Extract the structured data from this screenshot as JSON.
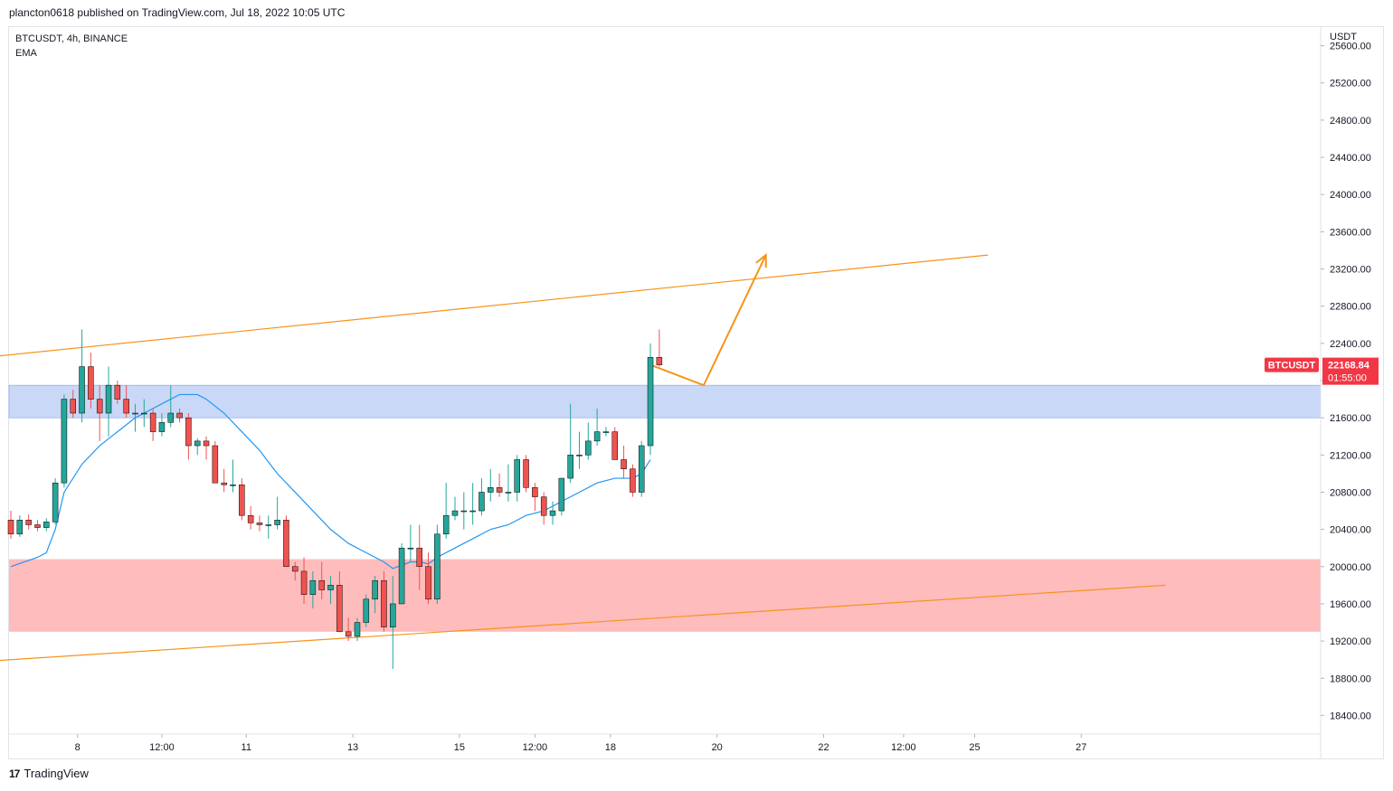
{
  "header": {
    "published": "plancton0618 published on TradingView.com, Jul 18, 2022 10:05 UTC"
  },
  "symbol": {
    "line1": "BTCUSDT, 4h, BINANCE",
    "line2": "EMA"
  },
  "price_axis": {
    "currency": "USDT"
  },
  "last_price": {
    "symbol_tag": "BTCUSDT",
    "price": "22168.84",
    "countdown": "01:55:00",
    "tag_color": "#f23645"
  },
  "footer": {
    "logo": "17",
    "brand": "TradingView"
  },
  "colors": {
    "up": "#26a69a",
    "down": "#ef5350",
    "ema": "#2196f3",
    "trend": "#f7931a",
    "resistance_zone": "#c9d8f7",
    "support_zone": "#ffbcbc"
  },
  "chart_data": {
    "type": "candlestick",
    "symbol": "BTCUSDT",
    "timeframe": "4h",
    "exchange": "BINANCE",
    "ylim": [
      18200,
      25900
    ],
    "y_ticks": [
      "25600.00",
      "25200.00",
      "24800.00",
      "24400.00",
      "24000.00",
      "23600.00",
      "23200.00",
      "22800.00",
      "22400.00",
      "22000.00",
      "21600.00",
      "21200.00",
      "20800.00",
      "20400.00",
      "20000.00",
      "19600.00",
      "19200.00",
      "18800.00",
      "18400.00"
    ],
    "x_ticks": [
      "8",
      "12:00",
      "11",
      "13",
      "15",
      "12:00",
      "18",
      "20",
      "22",
      "12:00",
      "25",
      "27"
    ],
    "x_tick_index": [
      7.5,
      17,
      26.5,
      38.5,
      50.5,
      59,
      67.5,
      79.5,
      91.5,
      100.5,
      108.5,
      120.5
    ],
    "candles": [
      [
        20500,
        20600,
        20300,
        20350
      ],
      [
        20350,
        20550,
        20320,
        20500
      ],
      [
        20500,
        20560,
        20400,
        20450
      ],
      [
        20450,
        20500,
        20380,
        20420
      ],
      [
        20420,
        20520,
        20380,
        20480
      ],
      [
        20480,
        20950,
        20450,
        20900
      ],
      [
        20900,
        21850,
        20850,
        21800
      ],
      [
        21800,
        21900,
        21600,
        21650
      ],
      [
        21650,
        22550,
        21550,
        22150
      ],
      [
        22150,
        22300,
        21700,
        21800
      ],
      [
        21800,
        21950,
        21350,
        21650
      ],
      [
        21650,
        22150,
        21400,
        21950
      ],
      [
        21950,
        22000,
        21750,
        21800
      ],
      [
        21800,
        21950,
        21600,
        21650
      ],
      [
        21650,
        21750,
        21450,
        21650
      ],
      [
        21650,
        21800,
        21500,
        21650
      ],
      [
        21650,
        21700,
        21350,
        21450
      ],
      [
        21450,
        21650,
        21400,
        21550
      ],
      [
        21550,
        21950,
        21500,
        21650
      ],
      [
        21650,
        21700,
        21550,
        21600
      ],
      [
        21600,
        21650,
        21150,
        21300
      ],
      [
        21300,
        21380,
        21200,
        21350
      ],
      [
        21350,
        21400,
        21150,
        21300
      ],
      [
        21300,
        21350,
        20900,
        20900
      ],
      [
        20900,
        21050,
        20800,
        20880
      ],
      [
        20880,
        21150,
        20800,
        20880
      ],
      [
        20880,
        20950,
        20500,
        20550
      ],
      [
        20550,
        20650,
        20400,
        20470
      ],
      [
        20470,
        20550,
        20380,
        20450
      ],
      [
        20450,
        20550,
        20300,
        20450
      ],
      [
        20450,
        20750,
        20400,
        20500
      ],
      [
        20500,
        20550,
        20000,
        20000
      ],
      [
        20000,
        20050,
        19850,
        19950
      ],
      [
        19950,
        20100,
        19600,
        19700
      ],
      [
        19700,
        19950,
        19550,
        19850
      ],
      [
        19850,
        20050,
        19650,
        19750
      ],
      [
        19750,
        19900,
        19600,
        19800
      ],
      [
        19800,
        19950,
        19300,
        19300
      ],
      [
        19300,
        19450,
        19200,
        19250
      ],
      [
        19250,
        19450,
        19200,
        19400
      ],
      [
        19400,
        19700,
        19350,
        19650
      ],
      [
        19650,
        19900,
        19500,
        19850
      ],
      [
        19850,
        19950,
        19300,
        19350
      ],
      [
        19350,
        19900,
        18900,
        19600
      ],
      [
        19600,
        20250,
        19600,
        20200
      ],
      [
        20200,
        20450,
        20050,
        20200
      ],
      [
        20200,
        20450,
        19750,
        20000
      ],
      [
        20000,
        20150,
        19600,
        19650
      ],
      [
        19650,
        20450,
        19600,
        20350
      ],
      [
        20350,
        20900,
        20300,
        20550
      ],
      [
        20550,
        20750,
        20500,
        20600
      ],
      [
        20600,
        20800,
        20400,
        20600
      ],
      [
        20600,
        20900,
        20450,
        20600
      ],
      [
        20600,
        20950,
        20550,
        20800
      ],
      [
        20800,
        21050,
        20700,
        20850
      ],
      [
        20850,
        21000,
        20750,
        20800
      ],
      [
        20800,
        21100,
        20700,
        20800
      ],
      [
        20800,
        21200,
        20700,
        21150
      ],
      [
        21150,
        21200,
        20800,
        20850
      ],
      [
        20850,
        20900,
        20600,
        20750
      ],
      [
        20750,
        20800,
        20450,
        20550
      ],
      [
        20550,
        20700,
        20450,
        20600
      ],
      [
        20600,
        20950,
        20550,
        20950
      ],
      [
        20950,
        21750,
        20900,
        21200
      ],
      [
        21200,
        21450,
        21050,
        21200
      ],
      [
        21200,
        21550,
        21150,
        21350
      ],
      [
        21350,
        21700,
        21300,
        21450
      ],
      [
        21450,
        21500,
        21400,
        21450
      ],
      [
        21450,
        21500,
        21150,
        21150
      ],
      [
        21150,
        21300,
        20950,
        21050
      ],
      [
        21050,
        21100,
        20750,
        20800
      ],
      [
        20800,
        21350,
        20750,
        21300
      ],
      [
        21300,
        22400,
        21200,
        22250
      ],
      [
        22250,
        22550,
        22150,
        22169
      ]
    ],
    "ema_points": [
      [
        0,
        20000
      ],
      [
        3,
        20100
      ],
      [
        4,
        20150
      ],
      [
        5,
        20400
      ],
      [
        6,
        20800
      ],
      [
        8,
        21100
      ],
      [
        10,
        21300
      ],
      [
        12,
        21450
      ],
      [
        14,
        21600
      ],
      [
        16,
        21700
      ],
      [
        18,
        21800
      ],
      [
        19,
        21850
      ],
      [
        21,
        21850
      ],
      [
        22,
        21800
      ],
      [
        24,
        21650
      ],
      [
        26,
        21450
      ],
      [
        28,
        21250
      ],
      [
        30,
        21000
      ],
      [
        32,
        20800
      ],
      [
        34,
        20600
      ],
      [
        36,
        20400
      ],
      [
        38,
        20250
      ],
      [
        40,
        20150
      ],
      [
        42,
        20050
      ],
      [
        43,
        19980
      ],
      [
        45,
        20050
      ],
      [
        46,
        20050
      ],
      [
        47,
        20030
      ],
      [
        48,
        20100
      ],
      [
        50,
        20200
      ],
      [
        52,
        20300
      ],
      [
        54,
        20400
      ],
      [
        56,
        20450
      ],
      [
        58,
        20550
      ],
      [
        60,
        20600
      ],
      [
        62,
        20700
      ],
      [
        64,
        20800
      ],
      [
        66,
        20900
      ],
      [
        68,
        20950
      ],
      [
        70,
        20950
      ],
      [
        71,
        21000
      ],
      [
        72,
        21150
      ]
    ],
    "support_zone": [
      19300,
      20080
    ],
    "resistance_zone": [
      21600,
      21950
    ],
    "trend_upper": [
      [
        -8,
        22200
      ],
      [
        110,
        23350
      ]
    ],
    "trend_lower": [
      [
        -8,
        18950
      ],
      [
        130,
        19800
      ]
    ],
    "projection": [
      [
        72,
        22170
      ],
      [
        78,
        21950
      ],
      [
        85,
        23350
      ]
    ],
    "x_offset": 0,
    "x_spacing": 9.85
  }
}
